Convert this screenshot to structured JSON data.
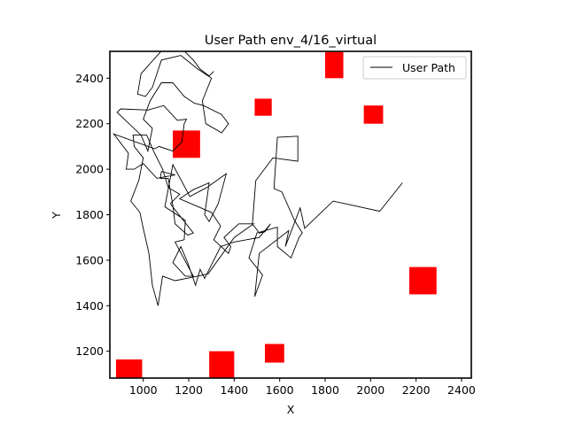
{
  "chart_data": {
    "type": "line",
    "title": "User Path env_4/16_virtual",
    "xlabel": "X",
    "ylabel": "Y",
    "xlim": [
      853,
      2443
    ],
    "ylim": [
      1082,
      2518
    ],
    "xticks": [
      1000,
      1200,
      1400,
      1600,
      1800,
      2000,
      2200,
      2400
    ],
    "yticks": [
      1200,
      1400,
      1600,
      1800,
      2000,
      2200,
      2400
    ],
    "legend": {
      "placement": "top-right",
      "entries": [
        "User Path"
      ]
    },
    "series": [
      {
        "name": "User Path",
        "color": "#000000",
        "points": [
          [
            2140,
            1940
          ],
          [
            2040,
            1815
          ],
          [
            1835,
            1860
          ],
          [
            1710,
            1740
          ],
          [
            1690,
            1830
          ],
          [
            1625,
            1660
          ],
          [
            1640,
            1730
          ],
          [
            1510,
            1630
          ],
          [
            1490,
            1440
          ],
          [
            1525,
            1535
          ],
          [
            1465,
            1610
          ],
          [
            1500,
            1720
          ],
          [
            1590,
            1745
          ],
          [
            1590,
            1660
          ],
          [
            1650,
            1610
          ],
          [
            1685,
            1700
          ],
          [
            1700,
            1720
          ],
          [
            1665,
            1775
          ],
          [
            1610,
            1900
          ],
          [
            1575,
            1915
          ],
          [
            1590,
            2140
          ],
          [
            1680,
            2145
          ],
          [
            1680,
            2035
          ],
          [
            1570,
            2050
          ],
          [
            1495,
            1950
          ],
          [
            1480,
            1760
          ],
          [
            1510,
            1720
          ],
          [
            1535,
            1725
          ],
          [
            1560,
            1760
          ],
          [
            1510,
            1700
          ],
          [
            1400,
            1680
          ],
          [
            1340,
            1660
          ],
          [
            1310,
            1600
          ],
          [
            1270,
            1520
          ],
          [
            1250,
            1560
          ],
          [
            1230,
            1490
          ],
          [
            1195,
            1590
          ],
          [
            1165,
            1660
          ],
          [
            1130,
            1590
          ],
          [
            1185,
            1530
          ],
          [
            1220,
            1530
          ],
          [
            1140,
            1680
          ],
          [
            1180,
            1690
          ],
          [
            1185,
            1775
          ],
          [
            1095,
            1835
          ],
          [
            1130,
            2020
          ],
          [
            1205,
            1880
          ],
          [
            1280,
            1920
          ],
          [
            1365,
            1980
          ],
          [
            1330,
            1850
          ],
          [
            1290,
            1770
          ],
          [
            1270,
            1800
          ],
          [
            1290,
            1940
          ],
          [
            1220,
            1910
          ],
          [
            1160,
            1870
          ],
          [
            1300,
            1810
          ],
          [
            1340,
            1750
          ],
          [
            1310,
            1690
          ],
          [
            1375,
            1630
          ],
          [
            1385,
            1660
          ],
          [
            1355,
            1700
          ],
          [
            1420,
            1760
          ],
          [
            1485,
            1760
          ],
          [
            1400,
            1700
          ],
          [
            1285,
            1540
          ],
          [
            1215,
            1525
          ],
          [
            1140,
            1510
          ],
          [
            1085,
            1530
          ],
          [
            1065,
            1400
          ],
          [
            1040,
            1490
          ],
          [
            1025,
            1630
          ],
          [
            1000,
            1740
          ],
          [
            985,
            1810
          ],
          [
            945,
            1860
          ],
          [
            980,
            1950
          ],
          [
            1000,
            2050
          ],
          [
            960,
            2100
          ],
          [
            955,
            2150
          ],
          [
            1015,
            2150
          ],
          [
            1045,
            2080
          ],
          [
            1085,
            2000
          ],
          [
            1110,
            1920
          ],
          [
            1160,
            1890
          ],
          [
            1120,
            1850
          ],
          [
            1125,
            1840
          ],
          [
            1220,
            1720
          ],
          [
            1195,
            1710
          ],
          [
            1140,
            1760
          ],
          [
            1130,
            1840
          ],
          [
            1120,
            1900
          ],
          [
            1110,
            1960
          ],
          [
            1075,
            1960
          ],
          [
            1080,
            1990
          ],
          [
            1140,
            1975
          ],
          [
            1060,
            1960
          ],
          [
            1000,
            2025
          ],
          [
            960,
            2000
          ],
          [
            925,
            2000
          ],
          [
            935,
            2070
          ],
          [
            870,
            2155
          ],
          [
            1050,
            2090
          ],
          [
            1070,
            2100
          ],
          [
            1130,
            2080
          ],
          [
            1170,
            2120
          ],
          [
            1180,
            2200
          ],
          [
            1190,
            2220
          ],
          [
            1150,
            2215
          ],
          [
            1090,
            2280
          ],
          [
            1020,
            2260
          ],
          [
            900,
            2265
          ],
          [
            885,
            2250
          ],
          [
            990,
            2150
          ],
          [
            1020,
            2080
          ],
          [
            1040,
            2180
          ],
          [
            1000,
            2220
          ],
          [
            1030,
            2300
          ],
          [
            1080,
            2380
          ],
          [
            1130,
            2380
          ],
          [
            1180,
            2320
          ],
          [
            1225,
            2290
          ],
          [
            1265,
            2280
          ],
          [
            1345,
            2240
          ],
          [
            1375,
            2200
          ],
          [
            1345,
            2160
          ],
          [
            1275,
            2200
          ],
          [
            1260,
            2300
          ],
          [
            1300,
            2400
          ],
          [
            1240,
            2440
          ],
          [
            1165,
            2500
          ],
          [
            1080,
            2480
          ],
          [
            1040,
            2360
          ],
          [
            1010,
            2320
          ],
          [
            975,
            2330
          ],
          [
            990,
            2420
          ],
          [
            1080,
            2520
          ],
          [
            1180,
            2520
          ],
          [
            1220,
            2480
          ],
          [
            1250,
            2440
          ],
          [
            1290,
            2410
          ],
          [
            1310,
            2430
          ]
        ]
      }
    ],
    "obstacles": [
      {
        "x": 880,
        "y": 1082,
        "w": 115,
        "h": 82,
        "color": "#ff0000"
      },
      {
        "x": 1290,
        "y": 1082,
        "w": 110,
        "h": 118,
        "color": "#ff0000"
      },
      {
        "x": 1535,
        "y": 1150,
        "w": 85,
        "h": 82,
        "color": "#ff0000"
      },
      {
        "x": 2170,
        "y": 1450,
        "w": 120,
        "h": 120,
        "color": "#ff0000"
      },
      {
        "x": 1130,
        "y": 2050,
        "w": 120,
        "h": 120,
        "color": "#ff0000"
      },
      {
        "x": 1490,
        "y": 2235,
        "w": 75,
        "h": 75,
        "color": "#ff0000"
      },
      {
        "x": 1970,
        "y": 2200,
        "w": 85,
        "h": 80,
        "color": "#ff0000"
      },
      {
        "x": 1800,
        "y": 2400,
        "w": 80,
        "h": 115,
        "color": "#ff0000"
      }
    ]
  }
}
